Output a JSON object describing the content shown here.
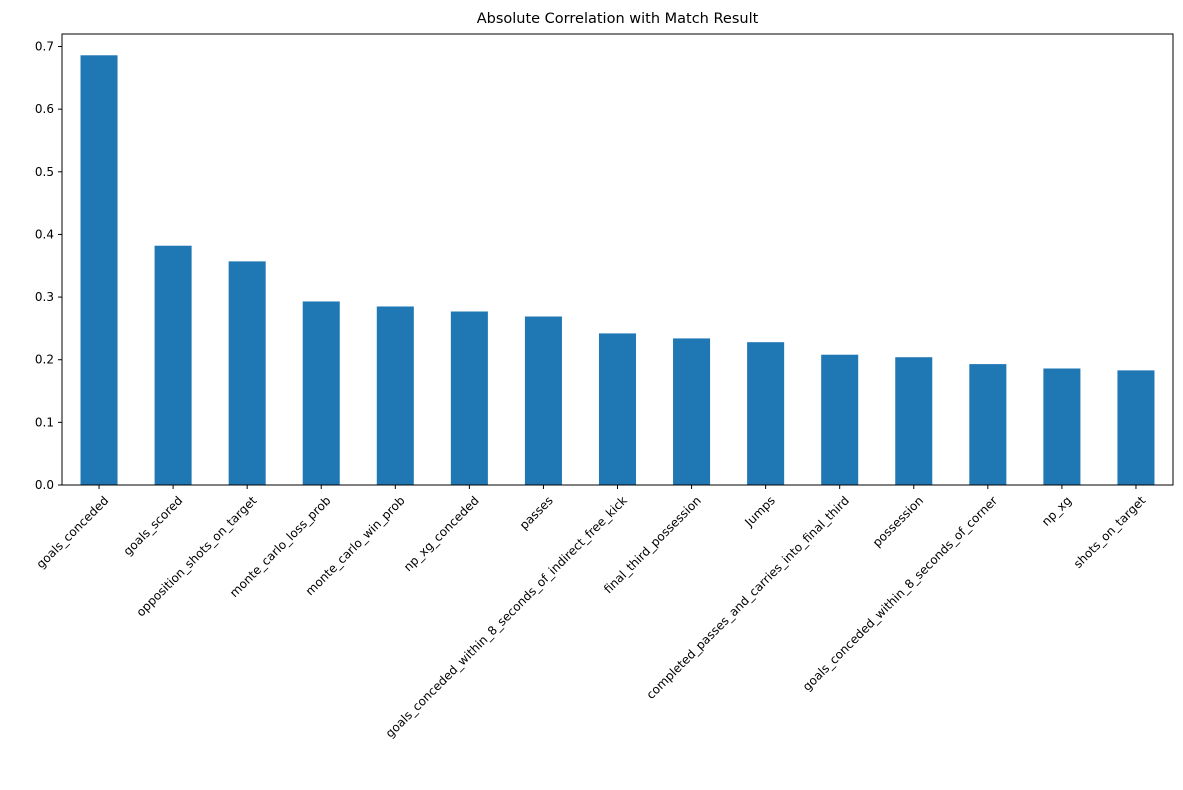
{
  "chart_data": {
    "type": "bar",
    "title": "Absolute Correlation with Match Result",
    "xlabel": "",
    "ylabel": "",
    "ylim": [
      0,
      0.72
    ],
    "yticks": [
      "0.0",
      "0.1",
      "0.2",
      "0.3",
      "0.4",
      "0.5",
      "0.6",
      "0.7"
    ],
    "categories": [
      "goals_conceded",
      "goals_scored",
      "opposition_shots_on_target",
      "monte_carlo_loss_prob",
      "monte_carlo_win_prob",
      "np_xg_conceded",
      "passes",
      "goals_conceded_within_8_seconds_of_indirect_free_kick",
      "final_third_possession",
      "Jumps",
      "completed_passes_and_carries_into_final_third",
      "possession",
      "goals_conceded_within_8_seconds_of_corner",
      "np_xg",
      "shots_on_target"
    ],
    "values": [
      0.686,
      0.382,
      0.357,
      0.293,
      0.285,
      0.277,
      0.269,
      0.242,
      0.234,
      0.228,
      0.208,
      0.204,
      0.193,
      0.186,
      0.183
    ],
    "bar_color": "#1f77b4",
    "grid": false,
    "legend": "none"
  }
}
